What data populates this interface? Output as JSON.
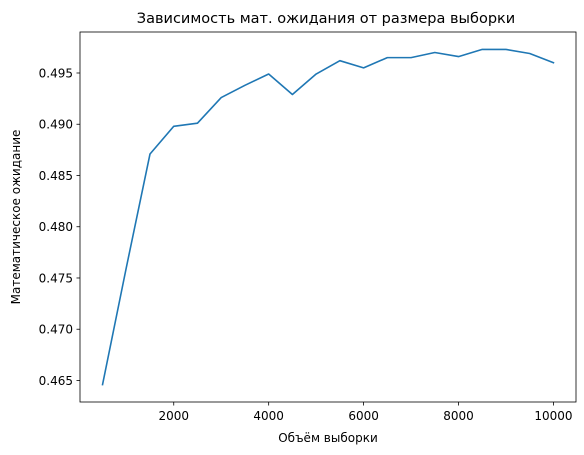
{
  "chart_data": {
    "type": "line",
    "title": "Зависимость мат. ожидания от размера выборки",
    "xlabel": "Объём выборки",
    "ylabel": "Математическое ожидание",
    "xlim": [
      25,
      10475
    ],
    "ylim": [
      0.4629,
      0.499
    ],
    "x_ticks": [
      2000,
      4000,
      6000,
      8000,
      10000
    ],
    "x_tick_labels": [
      "2000",
      "4000",
      "6000",
      "8000",
      "10000"
    ],
    "y_ticks": [
      0.465,
      0.47,
      0.475,
      0.48,
      0.485,
      0.49,
      0.495
    ],
    "y_tick_labels": [
      "0.465",
      "0.470",
      "0.475",
      "0.480",
      "0.485",
      "0.490",
      "0.495"
    ],
    "grid": false,
    "line_color": "#1f77b4",
    "series": [
      {
        "x": [
          500,
          1000,
          1500,
          2000,
          2500,
          3000,
          3500,
          4000,
          4500,
          5000,
          5500,
          6000,
          6500,
          7000,
          7500,
          8000,
          8500,
          9000,
          9500,
          10000
        ],
        "values": [
          0.4646,
          0.476,
          0.4871,
          0.4898,
          0.4901,
          0.4926,
          0.4938,
          0.4949,
          0.4929,
          0.4949,
          0.4962,
          0.4955,
          0.4965,
          0.4965,
          0.497,
          0.4966,
          0.4973,
          0.4973,
          0.4969,
          0.496
        ]
      }
    ]
  }
}
